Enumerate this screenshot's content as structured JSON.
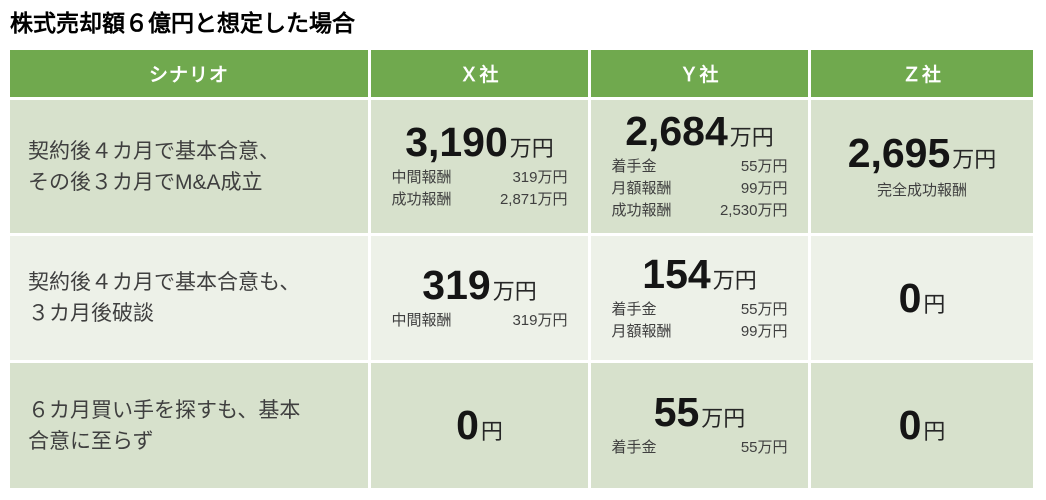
{
  "chart_data": {
    "type": "table",
    "title": "株式売却額６億円と想定した場合",
    "columns": [
      "シナリオ",
      "Ｘ社",
      "Ｙ社",
      "Ｚ社"
    ],
    "rows": [
      {
        "scenario": "契約後４カ月で基本合意、\nその後３カ月でM&A成立",
        "cells": [
          {
            "amount": "3,190",
            "unit": "万円",
            "breakdown": [
              {
                "label": "中間報酬",
                "value": "319万円"
              },
              {
                "label": "成功報酬",
                "value": "2,871万円"
              }
            ]
          },
          {
            "amount": "2,684",
            "unit": "万円",
            "breakdown": [
              {
                "label": "着手金",
                "value": "55万円"
              },
              {
                "label": "月額報酬",
                "value": "99万円"
              },
              {
                "label": "成功報酬",
                "value": "2,530万円"
              }
            ]
          },
          {
            "amount": "2,695",
            "unit": "万円",
            "note": "完全成功報酬"
          }
        ]
      },
      {
        "scenario": "契約後４カ月で基本合意も、\n３カ月後破談",
        "cells": [
          {
            "amount": "319",
            "unit": "万円",
            "breakdown": [
              {
                "label": "中間報酬",
                "value": "319万円"
              }
            ]
          },
          {
            "amount": "154",
            "unit": "万円",
            "breakdown": [
              {
                "label": "着手金",
                "value": "55万円"
              },
              {
                "label": "月額報酬",
                "value": "99万円"
              }
            ]
          },
          {
            "amount": "0",
            "unit": "円"
          }
        ]
      },
      {
        "scenario": "６カ月買い手を探すも、基本\n合意に至らず",
        "cells": [
          {
            "amount": "0",
            "unit": "円"
          },
          {
            "amount": "55",
            "unit": "万円",
            "breakdown": [
              {
                "label": "着手金",
                "value": "55万円"
              }
            ]
          },
          {
            "amount": "0",
            "unit": "円"
          }
        ]
      }
    ],
    "totals_in_manen": [
      [
        3190,
        2684,
        2695
      ],
      [
        319,
        154,
        0
      ],
      [
        0,
        55,
        0
      ]
    ]
  },
  "colors": {
    "header_bg": "#70A94E",
    "header_text": "#FFFFFF",
    "row_band_dark": "#D7E1CC",
    "row_band_light": "#EDF1E8",
    "scenario_text": "#3F3F3F",
    "amount_text": "#151515",
    "page_background": "#FFFFFF"
  }
}
